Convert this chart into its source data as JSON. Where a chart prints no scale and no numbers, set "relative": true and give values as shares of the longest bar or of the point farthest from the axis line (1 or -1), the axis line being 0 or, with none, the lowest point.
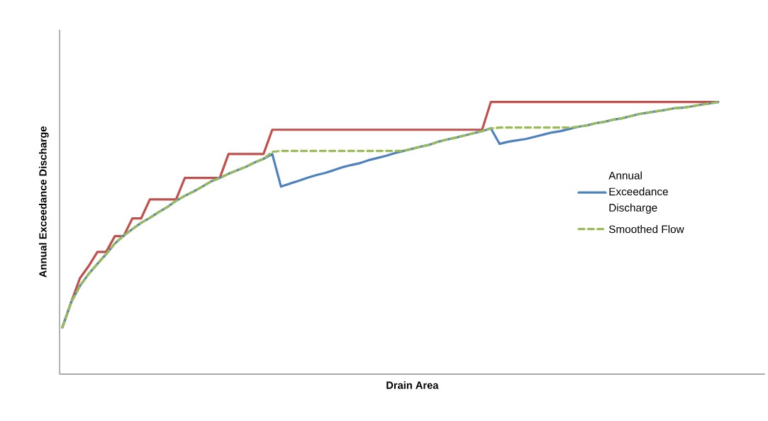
{
  "chart_data": {
    "type": "line",
    "relative": true,
    "xlabel": "Drain Area",
    "ylabel": "Annual Exceedance Discharge",
    "legend": "right",
    "marker": "none",
    "categories": [
      null,
      null,
      null,
      null,
      null,
      null,
      null,
      null,
      null,
      null,
      null,
      null,
      null,
      null,
      null,
      null,
      null,
      null,
      null,
      null,
      null,
      null,
      null,
      null,
      null,
      null,
      null,
      null,
      null,
      null,
      null,
      null,
      null,
      null,
      null,
      null,
      null,
      null,
      null,
      null,
      null,
      null,
      null,
      null,
      null,
      null,
      null,
      null,
      null,
      null,
      null,
      null,
      null,
      null,
      null,
      null,
      null,
      null,
      null,
      null,
      null,
      null,
      null,
      null,
      null,
      null,
      null,
      null,
      null,
      null,
      null,
      null,
      null,
      null,
      null,
      null
    ],
    "series": [
      {
        "name": "Annual Exceedance Discharge",
        "color": "#4f81bd",
        "line_style": "solid",
        "values": [
          0.172,
          0.264,
          0.324,
          0.368,
          0.405,
          0.441,
          0.48,
          0.509,
          0.533,
          0.556,
          0.574,
          0.595,
          0.614,
          0.637,
          0.655,
          0.671,
          0.689,
          0.708,
          0.721,
          0.736,
          0.749,
          0.762,
          0.778,
          0.791,
          0.809,
          0.689,
          0.7,
          0.71,
          0.721,
          0.731,
          0.739,
          0.749,
          0.76,
          0.768,
          0.775,
          0.786,
          0.794,
          0.802,
          0.812,
          0.82,
          0.828,
          0.836,
          0.843,
          0.854,
          0.862,
          0.869,
          0.877,
          0.885,
          0.893,
          0.903,
          0.846,
          0.854,
          0.859,
          0.864,
          0.872,
          0.88,
          0.888,
          0.893,
          0.901,
          0.909,
          0.914,
          0.922,
          0.927,
          0.935,
          0.94,
          0.948,
          0.956,
          0.961,
          0.966,
          0.971,
          0.977,
          0.979,
          0.984,
          0.99,
          0.995,
          1.0
        ]
      },
      {
        "name": "Smoothed Flow",
        "color": "#9bbb59",
        "line_style": "dashed",
        "values": [
          0.172,
          0.264,
          0.324,
          0.368,
          0.405,
          0.441,
          0.48,
          0.509,
          0.533,
          0.556,
          0.574,
          0.595,
          0.614,
          0.637,
          0.655,
          0.671,
          0.689,
          0.708,
          0.721,
          0.736,
          0.749,
          0.762,
          0.778,
          0.791,
          0.817,
          0.82,
          0.82,
          0.82,
          0.82,
          0.82,
          0.82,
          0.82,
          0.82,
          0.82,
          0.82,
          0.82,
          0.82,
          0.82,
          0.82,
          0.82,
          0.828,
          0.836,
          0.843,
          0.854,
          0.862,
          0.869,
          0.877,
          0.885,
          0.893,
          0.903,
          0.906,
          0.906,
          0.906,
          0.906,
          0.906,
          0.906,
          0.906,
          0.906,
          0.906,
          0.909,
          0.914,
          0.922,
          0.927,
          0.935,
          0.94,
          0.948,
          0.956,
          0.961,
          0.966,
          0.971,
          0.977,
          0.979,
          0.984,
          0.99,
          0.995,
          1.0
        ]
      },
      {
        "color": "#c0504d",
        "line_style": "solid",
        "values": [
          0.172,
          0.264,
          0.352,
          0.397,
          0.449,
          0.449,
          0.507,
          0.507,
          0.572,
          0.572,
          0.642,
          0.642,
          0.642,
          0.642,
          0.721,
          0.721,
          0.721,
          0.721,
          0.721,
          0.809,
          0.809,
          0.809,
          0.809,
          0.809,
          0.898,
          0.898,
          0.898,
          0.898,
          0.898,
          0.898,
          0.898,
          0.898,
          0.898,
          0.898,
          0.898,
          0.898,
          0.898,
          0.898,
          0.898,
          0.898,
          0.898,
          0.898,
          0.898,
          0.898,
          0.898,
          0.898,
          0.898,
          0.898,
          0.898,
          1.0,
          1.0,
          1.0,
          1.0,
          1.0,
          1.0,
          1.0,
          1.0,
          1.0,
          1.0,
          1.0,
          1.0,
          1.0,
          1.0,
          1.0,
          1.0,
          1.0,
          1.0,
          1.0,
          1.0,
          1.0,
          1.0,
          1.0,
          1.0,
          1.0,
          1.0,
          1.0
        ]
      }
    ]
  }
}
